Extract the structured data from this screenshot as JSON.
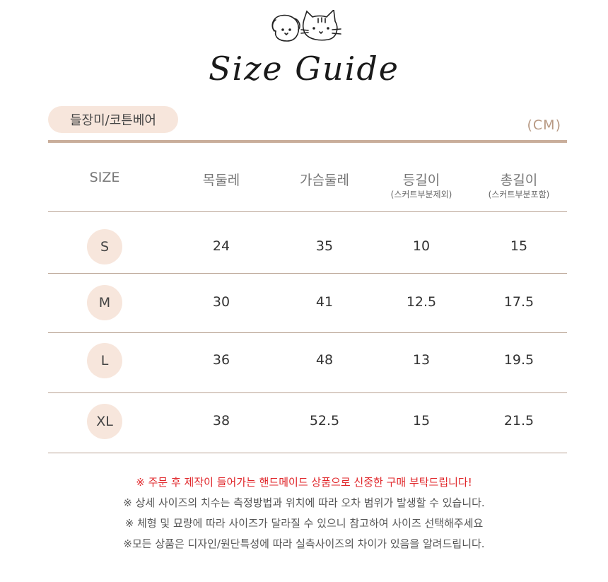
{
  "header": {
    "title": "Size Guide",
    "logo": "dog-and-cat-drawing"
  },
  "product_tag": "들장미/코튼베어",
  "unit": "(CM)",
  "table": {
    "columns": [
      {
        "label": "SIZE",
        "sub": ""
      },
      {
        "label": "목둘레",
        "sub": ""
      },
      {
        "label": "가슴둘레",
        "sub": ""
      },
      {
        "label": "등길이",
        "sub": "(스커트부분제외)"
      },
      {
        "label": "총길이",
        "sub": "(스커트부분포함)"
      }
    ],
    "rows": [
      [
        "S",
        "24",
        "35",
        "10",
        "15"
      ],
      [
        "M",
        "30",
        "41",
        "12.5",
        "17.5"
      ],
      [
        "L",
        "36",
        "48",
        "13",
        "19.5"
      ],
      [
        "XL",
        "38",
        "52.5",
        "15",
        "21.5"
      ]
    ]
  },
  "notes": [
    "※ 주문 후 제작이 들어가는 핸드메이드 상품으로 신중한 구매 부탁드립니다!",
    "※ 상세 사이즈의 치수는 측정방법과 위치에 따라 오차 범위가 발생할 수 있습니다.",
    "※ 체형 및 묘량에 따라 사이즈가 달라질 수 있으니 참고하여 사이즈 선택해주세요",
    "※모든 상품은 디자인/원단특성에 따라 실측사이즈의 차이가 있음을 알려드립니다."
  ],
  "colors": {
    "accent_line": "#c9ae9b",
    "pill_bg": "#f7e6dc",
    "warning": "#e0262a"
  }
}
